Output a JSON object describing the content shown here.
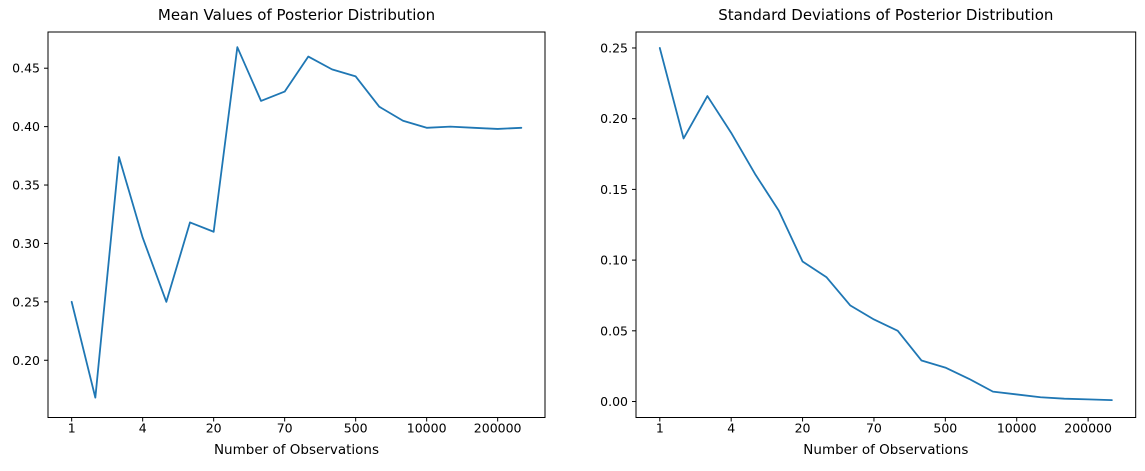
{
  "figure": {
    "background": "#ffffff",
    "line_color": "#1f77b4",
    "axis_color": "#000000",
    "text_color": "#000000"
  },
  "chart_data": [
    {
      "type": "line",
      "title": "Mean Values of Posterior Distribution",
      "xlabel": "Number of Observations",
      "ylabel": "",
      "grid": false,
      "legend_position": "none",
      "x_scale_note": "20 points evenly spaced on axis; log-style tick labels placed at every 3rd point",
      "x_ticks": [
        {
          "index": 0,
          "label": "1"
        },
        {
          "index": 3,
          "label": "4"
        },
        {
          "index": 6,
          "label": "20"
        },
        {
          "index": 9,
          "label": "70"
        },
        {
          "index": 12,
          "label": "500"
        },
        {
          "index": 15,
          "label": "10000"
        },
        {
          "index": 18,
          "label": "200000"
        }
      ],
      "y_ticks": [
        {
          "value": 0.45,
          "label": "0.45"
        },
        {
          "value": 0.4,
          "label": "0.40"
        },
        {
          "value": 0.35,
          "label": "0.35"
        },
        {
          "value": 0.3,
          "label": "0.30"
        },
        {
          "value": 0.25,
          "label": "0.25"
        },
        {
          "value": 0.2,
          "label": "0.20"
        }
      ],
      "ylim": [
        0.151,
        0.481
      ],
      "values": [
        0.25,
        0.168,
        0.374,
        0.305,
        0.25,
        0.318,
        0.31,
        0.468,
        0.422,
        0.43,
        0.46,
        0.449,
        0.443,
        0.417,
        0.405,
        0.399,
        0.4,
        0.399,
        0.398,
        0.399
      ]
    },
    {
      "type": "line",
      "title": "Standard Deviations of Posterior Distribution",
      "xlabel": "Number of Observations",
      "ylabel": "",
      "grid": false,
      "legend_position": "none",
      "x_scale_note": "20 points evenly spaced on axis; log-style tick labels placed at every 3rd point",
      "x_ticks": [
        {
          "index": 0,
          "label": "1"
        },
        {
          "index": 3,
          "label": "4"
        },
        {
          "index": 6,
          "label": "20"
        },
        {
          "index": 9,
          "label": "70"
        },
        {
          "index": 12,
          "label": "500"
        },
        {
          "index": 15,
          "label": "10000"
        },
        {
          "index": 18,
          "label": "200000"
        }
      ],
      "y_ticks": [
        {
          "value": 0.25,
          "label": "0.25"
        },
        {
          "value": 0.2,
          "label": "0.20"
        },
        {
          "value": 0.15,
          "label": "0.15"
        },
        {
          "value": 0.1,
          "label": "0.10"
        },
        {
          "value": 0.05,
          "label": "0.05"
        },
        {
          "value": 0.0,
          "label": "0.00"
        }
      ],
      "ylim": [
        -0.0113,
        0.2613
      ],
      "values": [
        0.25,
        0.186,
        0.216,
        0.19,
        0.161,
        0.135,
        0.099,
        0.088,
        0.068,
        0.058,
        0.05,
        0.029,
        0.024,
        0.016,
        0.007,
        0.005,
        0.003,
        0.002,
        0.0015,
        0.001
      ]
    }
  ]
}
